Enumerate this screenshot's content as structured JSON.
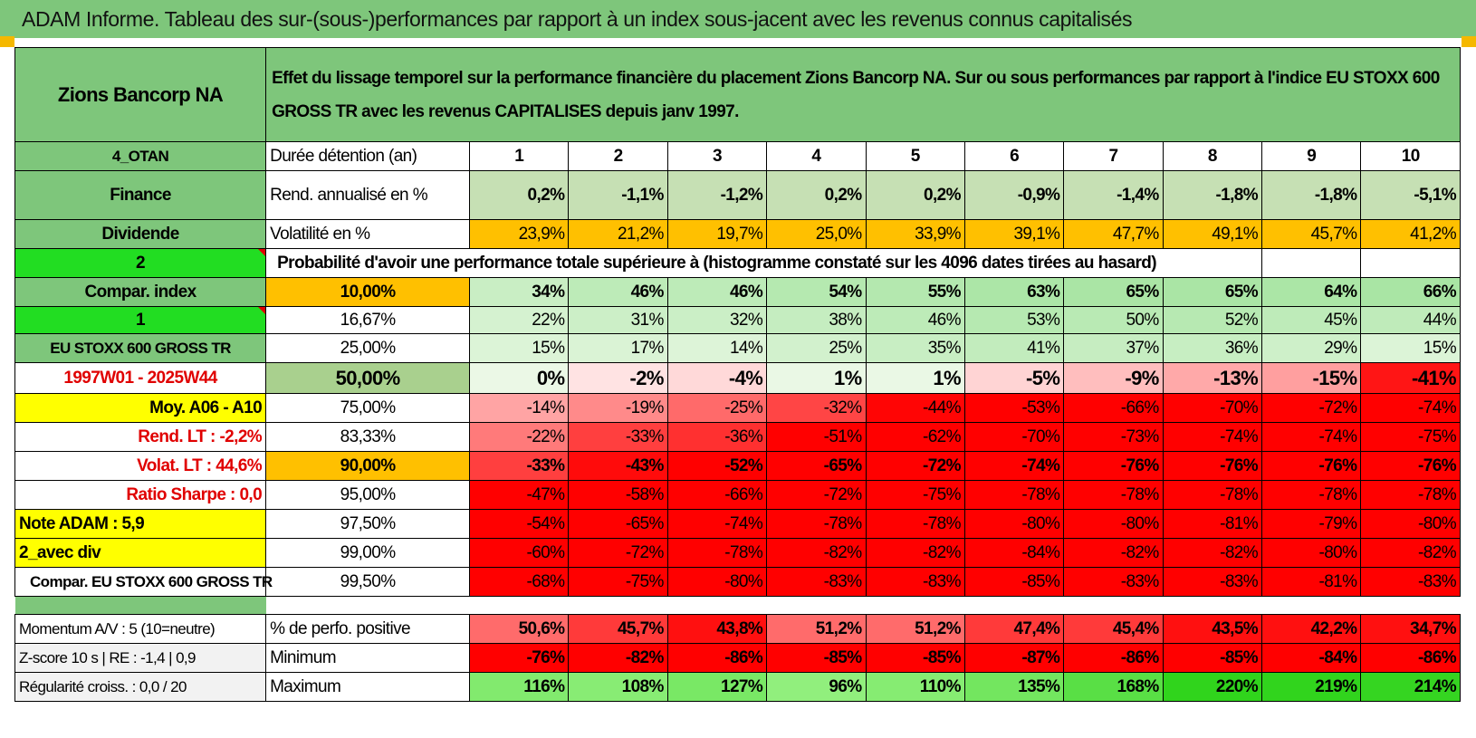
{
  "title": "ADAM Informe. Tableau des sur-(sous-)performances par rapport à un index sous-jacent avec les revenus connus capitalisés",
  "company": "Zions Bancorp NA",
  "description": "Effet du lissage temporel sur la performance financière du placement Zions Bancorp NA. Sur ou sous performances par rapport à l'indice EU STOXX 600 GROSS TR avec les revenus CAPITALISES depuis janv 1997.",
  "left_labels": {
    "otan": "4_OTAN",
    "sector": "Finance",
    "dividend": "Dividende",
    "sel2": "2",
    "compar_index": "Compar. index",
    "sel1": "1",
    "index_name": "EU STOXX 600 GROSS TR",
    "period": "1997W01 - 2025W44",
    "moy": "Moy. A06 - A10",
    "rend_lt": "Rend. LT :    -2,2%",
    "volat_lt": "Volat. LT :    44,6%",
    "sharpe": "Ratio Sharpe :     0,0",
    "note": "Note ADAM : 5,9",
    "avec_div": "2_avec div",
    "compar_name": "Compar. EU STOXX 600 GROSS TR",
    "momentum": "Momentum A/V : 5 (10=neutre)",
    "zscore": "Z-score 10 s | RE : -1,4 | 0,9",
    "regularite": "Régularité croiss. : 0,0 / 20"
  },
  "row_labels": {
    "duree": "Durée détention (an)",
    "rend": "Rend. annualisé en %",
    "volat": "Volatilité en %",
    "proba": "Probabilité d'avoir une performance totale supérieure à (histogramme constaté sur les 4096 dates tirées au hasard)",
    "perf_pos": "% de perfo. positive",
    "minimum": "Minimum",
    "maximum": "Maximum"
  },
  "years": [
    "1",
    "2",
    "3",
    "4",
    "5",
    "6",
    "7",
    "8",
    "9",
    "10"
  ],
  "rend": [
    "0,2%",
    "-1,1%",
    "-1,2%",
    "0,2%",
    "0,2%",
    "-0,9%",
    "-1,4%",
    "-1,8%",
    "-1,8%",
    "-5,1%"
  ],
  "volat": [
    "23,9%",
    "21,2%",
    "19,7%",
    "25,0%",
    "33,9%",
    "39,1%",
    "47,7%",
    "49,1%",
    "45,7%",
    "41,2%"
  ],
  "percentile_rows": [
    {
      "pct": "10,00%",
      "values": [
        "34%",
        "46%",
        "46%",
        "54%",
        "55%",
        "63%",
        "65%",
        "65%",
        "64%",
        "66%"
      ]
    },
    {
      "pct": "16,67%",
      "values": [
        "22%",
        "31%",
        "32%",
        "38%",
        "46%",
        "53%",
        "50%",
        "52%",
        "45%",
        "44%"
      ]
    },
    {
      "pct": "25,00%",
      "values": [
        "15%",
        "17%",
        "14%",
        "25%",
        "35%",
        "41%",
        "37%",
        "36%",
        "29%",
        "15%"
      ]
    },
    {
      "pct": "50,00%",
      "values": [
        "0%",
        "-2%",
        "-4%",
        "1%",
        "1%",
        "-5%",
        "-9%",
        "-13%",
        "-15%",
        "-41%"
      ]
    },
    {
      "pct": "75,00%",
      "values": [
        "-14%",
        "-19%",
        "-25%",
        "-32%",
        "-44%",
        "-53%",
        "-66%",
        "-70%",
        "-72%",
        "-74%"
      ]
    },
    {
      "pct": "83,33%",
      "values": [
        "-22%",
        "-33%",
        "-36%",
        "-51%",
        "-62%",
        "-70%",
        "-73%",
        "-74%",
        "-74%",
        "-75%"
      ]
    },
    {
      "pct": "90,00%",
      "values": [
        "-33%",
        "-43%",
        "-52%",
        "-65%",
        "-72%",
        "-74%",
        "-76%",
        "-76%",
        "-76%",
        "-76%"
      ]
    },
    {
      "pct": "95,00%",
      "values": [
        "-47%",
        "-58%",
        "-66%",
        "-72%",
        "-75%",
        "-78%",
        "-78%",
        "-78%",
        "-78%",
        "-78%"
      ]
    },
    {
      "pct": "97,50%",
      "values": [
        "-54%",
        "-65%",
        "-74%",
        "-78%",
        "-78%",
        "-80%",
        "-80%",
        "-81%",
        "-79%",
        "-80%"
      ]
    },
    {
      "pct": "99,00%",
      "values": [
        "-60%",
        "-72%",
        "-78%",
        "-82%",
        "-82%",
        "-84%",
        "-82%",
        "-82%",
        "-80%",
        "-82%"
      ]
    },
    {
      "pct": "99,50%",
      "values": [
        "-68%",
        "-75%",
        "-80%",
        "-83%",
        "-83%",
        "-85%",
        "-83%",
        "-83%",
        "-81%",
        "-83%"
      ]
    }
  ],
  "perf_pos": [
    "50,6%",
    "45,7%",
    "43,8%",
    "51,2%",
    "51,2%",
    "47,4%",
    "45,4%",
    "43,5%",
    "42,2%",
    "34,7%"
  ],
  "minimum": [
    "-76%",
    "-82%",
    "-86%",
    "-85%",
    "-85%",
    "-87%",
    "-86%",
    "-85%",
    "-84%",
    "-86%"
  ],
  "maximum": [
    "116%",
    "108%",
    "127%",
    "96%",
    "110%",
    "135%",
    "168%",
    "220%",
    "219%",
    "214%"
  ],
  "colors": {
    "header_green": "#7ec67b",
    "bright_green": "#22dd22",
    "yellow": "#ffff00",
    "orange": "#ffc000",
    "red": "#ff0000",
    "label_red": "#e00000"
  }
}
